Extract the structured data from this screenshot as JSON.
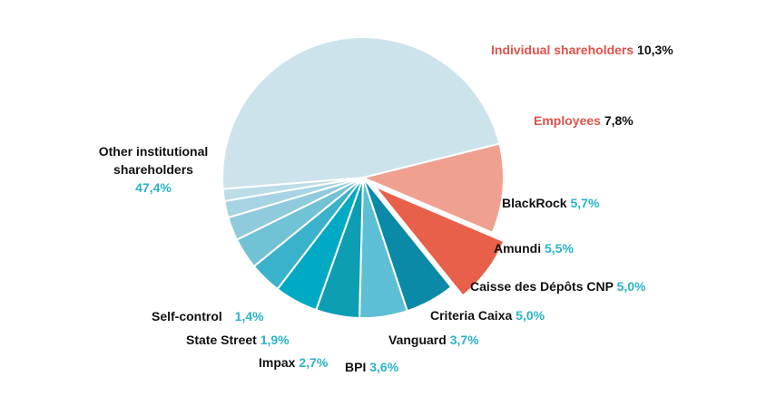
{
  "chart_data": {
    "type": "pie",
    "slices": [
      {
        "label": "Individual shareholders",
        "value_label": "10,3%",
        "value": 10.3,
        "color": "#f0a090",
        "name_color": "#e0524a",
        "value_color": "#111111"
      },
      {
        "label": "Employees",
        "value_label": "7,8%",
        "value": 7.8,
        "color": "#e8604a",
        "exploded": true,
        "name_color": "#e0524a",
        "value_color": "#111111"
      },
      {
        "label": "BlackRock",
        "value_label": "5,7%",
        "value": 5.7,
        "color": "#0a8aa6"
      },
      {
        "label": "Amundi",
        "value_label": "5,5%",
        "value": 5.5,
        "color": "#5cbfd6"
      },
      {
        "label": "Caisse des Dépôts CNP",
        "value_label": "5,0%",
        "value": 5.0,
        "color": "#0d9eb4"
      },
      {
        "label": "Criteria Caixa",
        "value_label": "5,0%",
        "value": 5.0,
        "color": "#00aac4"
      },
      {
        "label": "Vanguard",
        "value_label": "3,7%",
        "value": 3.7,
        "color": "#3bb2cc"
      },
      {
        "label": "BPI",
        "value_label": "3,6%",
        "value": 3.6,
        "color": "#72c2d6"
      },
      {
        "label": "Impax",
        "value_label": "2,7%",
        "value": 2.7,
        "color": "#8fcbdc"
      },
      {
        "label": "State Street",
        "value_label": "1,9%",
        "value": 1.9,
        "color": "#a7d4e2"
      },
      {
        "label": "Self-control",
        "value_label": "1,4%",
        "value": 1.4,
        "color": "#bcdde8"
      },
      {
        "label": "Other institutional shareholders",
        "label_lines": [
          "Other institutional",
          "shareholders"
        ],
        "value_label": "47,4%",
        "value": 47.4,
        "color": "#cde3ec"
      }
    ],
    "label_color": "#111111",
    "value_color": "#2ab3c9"
  }
}
